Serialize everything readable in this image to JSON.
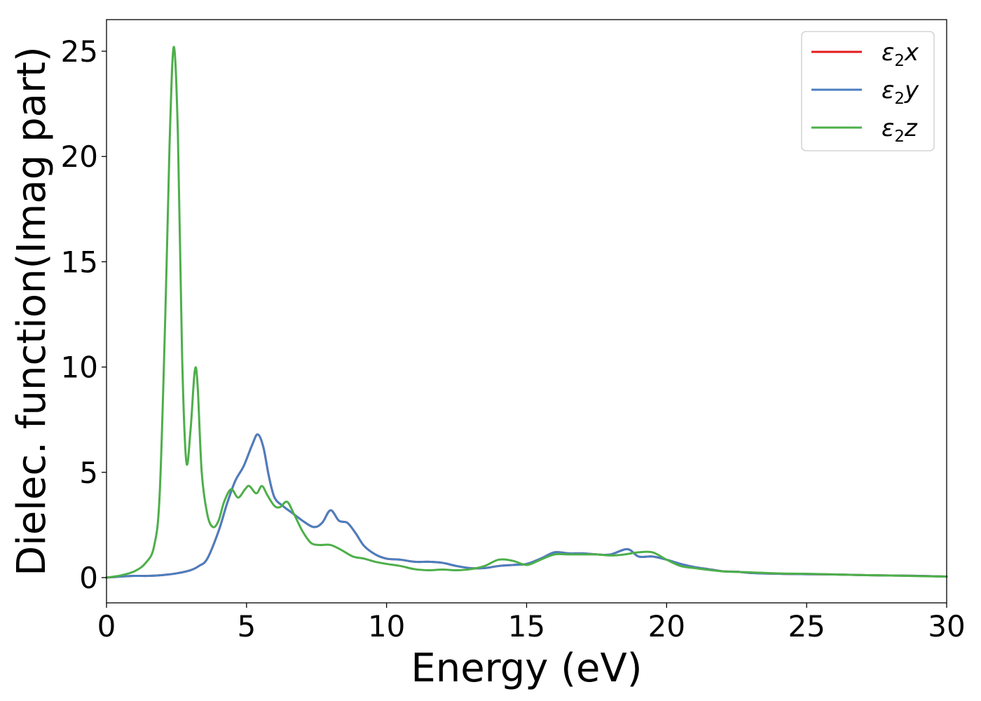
{
  "chart_data": {
    "type": "line",
    "title": "",
    "xlabel": "Energy (eV)",
    "ylabel": "Dielec. function(Imag part)",
    "xlim": [
      0,
      30
    ],
    "ylim": [
      -1.2,
      26.5
    ],
    "xticks": [
      0,
      5,
      10,
      15,
      20,
      25,
      30
    ],
    "yticks": [
      0,
      5,
      10,
      15,
      20,
      25
    ],
    "grid": false,
    "legend_position": "top-right",
    "series": [
      {
        "name": "ε₂x",
        "legend_base": "ε",
        "legend_sub": "2",
        "legend_suffix": "x",
        "color": "#e41a1c",
        "x": [
          0,
          0.5,
          1.0,
          1.5,
          2.0,
          2.5,
          3.0,
          3.3,
          3.6,
          4.0,
          4.3,
          4.6,
          4.9,
          5.2,
          5.4,
          5.6,
          5.8,
          6.0,
          6.3,
          6.6,
          7.0,
          7.4,
          7.7,
          8.0,
          8.3,
          8.6,
          8.9,
          9.2,
          9.6,
          10.0,
          10.5,
          11.0,
          11.5,
          12.0,
          12.5,
          13.0,
          13.5,
          14.0,
          14.5,
          15.0,
          15.5,
          16.0,
          16.5,
          17.0,
          17.5,
          18.0,
          18.6,
          19.0,
          19.5,
          20.0,
          20.5,
          21.0,
          21.5,
          22.0,
          22.5,
          23.0,
          24.0,
          25.0,
          26.0,
          27.0,
          28.0,
          29.0,
          30.0
        ],
        "y": [
          0.0,
          0.05,
          0.08,
          0.08,
          0.12,
          0.2,
          0.35,
          0.55,
          0.9,
          2.2,
          3.5,
          4.6,
          5.3,
          6.3,
          6.8,
          6.2,
          4.8,
          3.8,
          3.4,
          3.1,
          2.7,
          2.4,
          2.6,
          3.2,
          2.7,
          2.6,
          2.1,
          1.5,
          1.1,
          0.9,
          0.85,
          0.75,
          0.75,
          0.7,
          0.55,
          0.45,
          0.45,
          0.55,
          0.6,
          0.65,
          0.9,
          1.2,
          1.15,
          1.15,
          1.1,
          1.1,
          1.35,
          1.0,
          1.0,
          0.85,
          0.65,
          0.5,
          0.4,
          0.3,
          0.28,
          0.22,
          0.18,
          0.16,
          0.15,
          0.12,
          0.1,
          0.08,
          0.05
        ]
      },
      {
        "name": "ε₂y",
        "legend_base": "ε",
        "legend_sub": "2",
        "legend_suffix": "y",
        "color": "#4a7fc0",
        "x": [
          0,
          0.5,
          1.0,
          1.5,
          2.0,
          2.5,
          3.0,
          3.3,
          3.6,
          4.0,
          4.3,
          4.6,
          4.9,
          5.2,
          5.4,
          5.6,
          5.8,
          6.0,
          6.3,
          6.6,
          7.0,
          7.4,
          7.7,
          8.0,
          8.3,
          8.6,
          8.9,
          9.2,
          9.6,
          10.0,
          10.5,
          11.0,
          11.5,
          12.0,
          12.5,
          13.0,
          13.5,
          14.0,
          14.5,
          15.0,
          15.5,
          16.0,
          16.5,
          17.0,
          17.5,
          18.0,
          18.6,
          19.0,
          19.5,
          20.0,
          20.5,
          21.0,
          21.5,
          22.0,
          22.5,
          23.0,
          24.0,
          25.0,
          26.0,
          27.0,
          28.0,
          29.0,
          30.0
        ],
        "y": [
          0.0,
          0.05,
          0.08,
          0.08,
          0.12,
          0.2,
          0.35,
          0.55,
          0.9,
          2.2,
          3.5,
          4.6,
          5.3,
          6.3,
          6.8,
          6.2,
          4.8,
          3.8,
          3.4,
          3.1,
          2.7,
          2.4,
          2.6,
          3.2,
          2.7,
          2.6,
          2.1,
          1.5,
          1.1,
          0.9,
          0.85,
          0.75,
          0.75,
          0.7,
          0.55,
          0.45,
          0.45,
          0.55,
          0.6,
          0.65,
          0.9,
          1.2,
          1.15,
          1.15,
          1.1,
          1.1,
          1.35,
          1.0,
          1.0,
          0.85,
          0.65,
          0.5,
          0.4,
          0.3,
          0.28,
          0.22,
          0.18,
          0.16,
          0.15,
          0.12,
          0.1,
          0.08,
          0.05
        ]
      },
      {
        "name": "ε₂z",
        "legend_base": "ε",
        "legend_sub": "2",
        "legend_suffix": "z",
        "color": "#4daf4a",
        "x": [
          0,
          0.5,
          1.0,
          1.4,
          1.7,
          1.9,
          2.1,
          2.25,
          2.4,
          2.55,
          2.7,
          2.85,
          3.0,
          3.15,
          3.25,
          3.4,
          3.6,
          3.8,
          4.0,
          4.2,
          4.45,
          4.7,
          4.95,
          5.1,
          5.35,
          5.55,
          5.75,
          6.0,
          6.2,
          6.45,
          6.7,
          7.0,
          7.3,
          7.6,
          8.0,
          8.4,
          8.8,
          9.2,
          9.6,
          10.0,
          10.5,
          11.0,
          11.5,
          12.0,
          12.5,
          13.0,
          13.5,
          14.0,
          14.5,
          15.0,
          15.5,
          16.0,
          16.5,
          17.0,
          17.5,
          18.0,
          18.5,
          19.0,
          19.5,
          20.0,
          20.5,
          21.0,
          22.0,
          23.0,
          24.0,
          25.0,
          26.0,
          27.0,
          28.0,
          29.0,
          30.0
        ],
        "y": [
          0.0,
          0.1,
          0.3,
          0.7,
          1.5,
          4.0,
          12.5,
          20.5,
          25.2,
          21.0,
          10.5,
          5.5,
          7.0,
          9.8,
          9.2,
          5.0,
          3.0,
          2.4,
          2.7,
          3.6,
          4.2,
          3.8,
          4.2,
          4.35,
          4.0,
          4.35,
          3.9,
          3.4,
          3.35,
          3.6,
          3.0,
          2.2,
          1.65,
          1.55,
          1.55,
          1.3,
          1.0,
          0.9,
          0.75,
          0.65,
          0.55,
          0.4,
          0.35,
          0.38,
          0.35,
          0.4,
          0.55,
          0.85,
          0.8,
          0.6,
          0.85,
          1.1,
          1.1,
          1.1,
          1.1,
          1.05,
          1.1,
          1.2,
          1.2,
          0.85,
          0.55,
          0.45,
          0.3,
          0.25,
          0.2,
          0.18,
          0.15,
          0.12,
          0.1,
          0.07,
          0.05
        ]
      }
    ]
  }
}
